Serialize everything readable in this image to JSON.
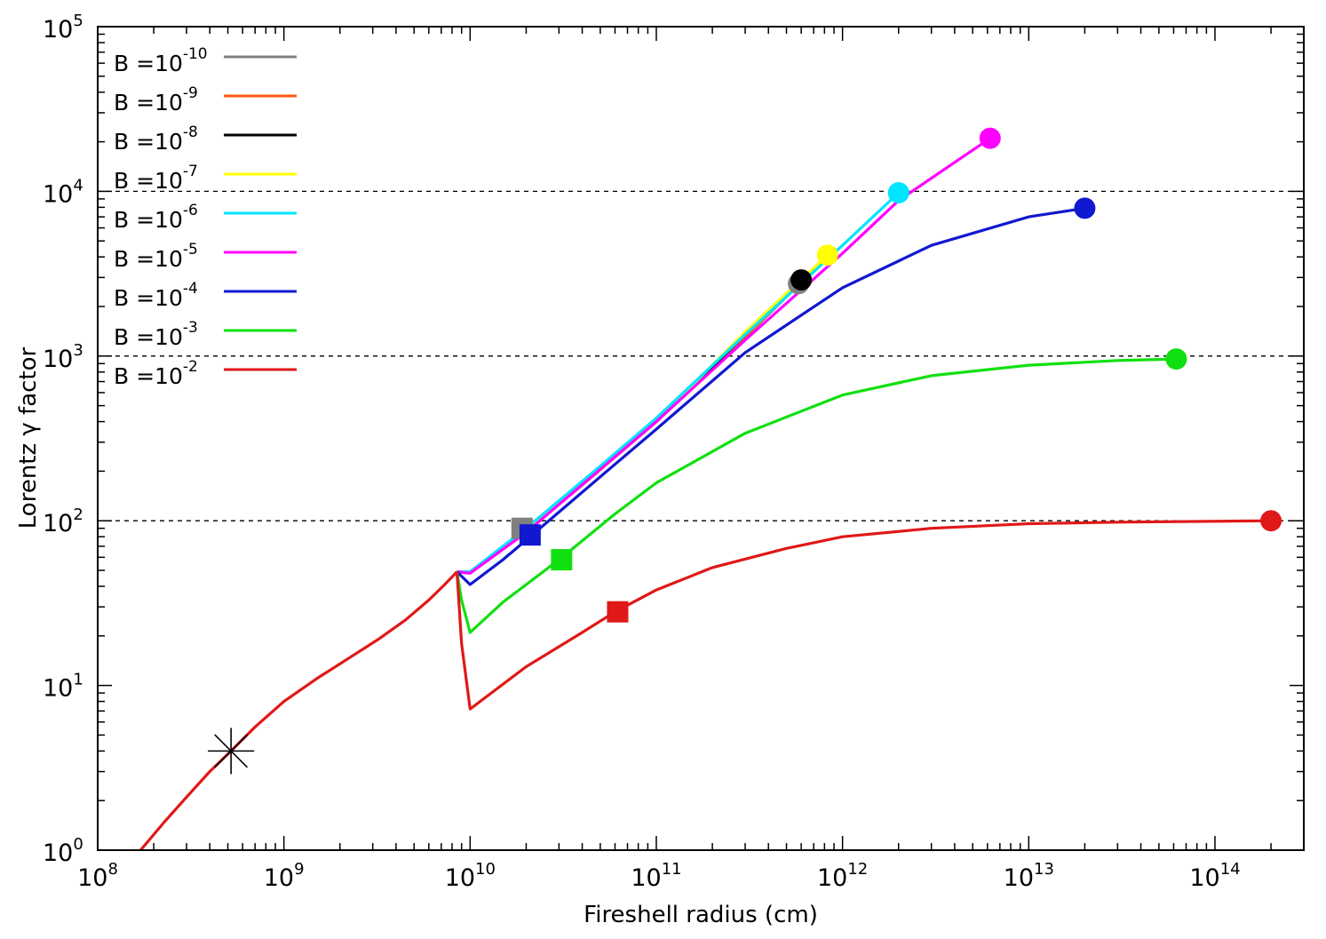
{
  "chart_data": {
    "type": "line",
    "xlabel": "Fireshell radius (cm)",
    "ylabel": "Lorentz γ factor",
    "x_scale": "log",
    "y_scale": "log",
    "xlim": [
      100000000.0,
      300000000000000.0
    ],
    "ylim": [
      1,
      100000.0
    ],
    "x_ticks": [
      {
        "base": "10",
        "exp": "8",
        "value": 100000000.0
      },
      {
        "base": "10",
        "exp": "9",
        "value": 1000000000.0
      },
      {
        "base": "10",
        "exp": "10",
        "value": 10000000000.0
      },
      {
        "base": "10",
        "exp": "11",
        "value": 100000000000.0
      },
      {
        "base": "10",
        "exp": "12",
        "value": 1000000000000.0
      },
      {
        "base": "10",
        "exp": "13",
        "value": 10000000000000.0
      },
      {
        "base": "10",
        "exp": "14",
        "value": 100000000000000.0
      }
    ],
    "y_ticks": [
      {
        "base": "10",
        "exp": "0",
        "value": 1
      },
      {
        "base": "10",
        "exp": "1",
        "value": 10
      },
      {
        "base": "10",
        "exp": "2",
        "value": 100
      },
      {
        "base": "10",
        "exp": "3",
        "value": 1000
      },
      {
        "base": "10",
        "exp": "4",
        "value": 10000
      },
      {
        "base": "10",
        "exp": "5",
        "value": 100000
      }
    ],
    "dashed_gridlines_y": [
      100,
      1000,
      10000
    ],
    "legend_position": "top-left",
    "common_curve": {
      "color": "#e01818",
      "points": [
        [
          170000000.0,
          1
        ],
        [
          230000000.0,
          1.5
        ],
        [
          300000000.0,
          2.1
        ],
        [
          400000000.0,
          3.0
        ],
        [
          520000000.0,
          4.0
        ],
        [
          700000000.0,
          5.6
        ],
        [
          1000000000.0,
          8.0
        ],
        [
          1500000000.0,
          11
        ],
        [
          2200000000.0,
          14.5
        ],
        [
          3200000000.0,
          19
        ],
        [
          4500000000.0,
          25
        ],
        [
          6000000000.0,
          33
        ],
        [
          7300000000.0,
          41
        ],
        [
          8500000000.0,
          49
        ]
      ]
    },
    "series": [
      {
        "name_base": "B =10",
        "name_exp": "-10",
        "color": "#808080",
        "points": [
          [
            8500000000.0,
            49
          ],
          [
            10000000000.0,
            49
          ],
          [
            20000000000.0,
            88
          ],
          [
            40000000000.0,
            165
          ],
          [
            100000000000.0,
            400
          ],
          [
            300000000000.0,
            1300
          ],
          [
            580000000000.0,
            2700
          ]
        ],
        "square": [
          19000000000.0,
          90
        ],
        "circle": [
          580000000000.0,
          2750
        ]
      },
      {
        "name_base": "B =10",
        "name_exp": "-9",
        "color": "#ff5a10",
        "points": [
          [
            8500000000.0,
            49
          ],
          [
            10000000000.0,
            49
          ],
          [
            20000000000.0,
            88
          ],
          [
            40000000000.0,
            165
          ],
          [
            100000000000.0,
            400
          ],
          [
            300000000000.0,
            1300
          ],
          [
            580000000000.0,
            2750
          ]
        ],
        "square": null,
        "circle": null
      },
      {
        "name_base": "B =10",
        "name_exp": "-8",
        "color": "#000000",
        "points": [
          [
            8500000000.0,
            49
          ],
          [
            10000000000.0,
            49
          ],
          [
            20000000000.0,
            88
          ],
          [
            40000000000.0,
            165
          ],
          [
            100000000000.0,
            400
          ],
          [
            300000000000.0,
            1350
          ],
          [
            600000000000.0,
            2850
          ]
        ],
        "square": null,
        "circle": [
          600000000000.0,
          2900
        ]
      },
      {
        "name_base": "B =10",
        "name_exp": "-7",
        "color": "#ffff00",
        "points": [
          [
            8500000000.0,
            49
          ],
          [
            10000000000.0,
            49
          ],
          [
            20000000000.0,
            88
          ],
          [
            40000000000.0,
            165
          ],
          [
            100000000000.0,
            400
          ],
          [
            300000000000.0,
            1400
          ],
          [
            830000000000.0,
            4100
          ]
        ],
        "square": null,
        "circle": [
          830000000000.0,
          4100
        ]
      },
      {
        "name_base": "B =10",
        "name_exp": "-6",
        "color": "#00e5ff",
        "points": [
          [
            8500000000.0,
            49
          ],
          [
            10000000000.0,
            49
          ],
          [
            20000000000.0,
            90
          ],
          [
            50000000000.0,
            215
          ],
          [
            100000000000.0,
            420
          ],
          [
            300000000000.0,
            1350
          ],
          [
            1000000000000.0,
            4700
          ],
          [
            2000000000000.0,
            9800
          ]
        ],
        "square": null,
        "circle": [
          2000000000000.0,
          9800
        ]
      },
      {
        "name_base": "B =10",
        "name_exp": "-5",
        "color": "#ff00ff",
        "points": [
          [
            8500000000.0,
            49
          ],
          [
            10000000000.0,
            48
          ],
          [
            20000000000.0,
            85
          ],
          [
            50000000000.0,
            205
          ],
          [
            100000000000.0,
            400
          ],
          [
            300000000000.0,
            1250
          ],
          [
            1000000000000.0,
            4200
          ],
          [
            2000000000000.0,
            8800
          ],
          [
            6200000000000.0,
            21000
          ]
        ],
        "square": null,
        "circle": [
          6200000000000.0,
          21000
        ]
      },
      {
        "name_base": "B =10",
        "name_exp": "-4",
        "color": "#1018d0",
        "points": [
          [
            8500000000.0,
            49
          ],
          [
            10000000000.0,
            41
          ],
          [
            15000000000.0,
            58
          ],
          [
            21000000000.0,
            80
          ],
          [
            50000000000.0,
            185
          ],
          [
            100000000000.0,
            360
          ],
          [
            300000000000.0,
            1050
          ],
          [
            1000000000000.0,
            2600
          ],
          [
            3000000000000.0,
            4700
          ],
          [
            10000000000000.0,
            7000
          ],
          [
            20000000000000.0,
            7900
          ]
        ],
        "square": [
          21000000000.0,
          82
        ],
        "circle": [
          20000000000000.0,
          7900
        ]
      },
      {
        "name_base": "B =10",
        "name_exp": "-3",
        "color": "#10e010",
        "points": [
          [
            8500000000.0,
            49
          ],
          [
            9000000000.0,
            33
          ],
          [
            10000000000.0,
            21
          ],
          [
            15000000000.0,
            32
          ],
          [
            30000000000.0,
            58
          ],
          [
            60000000000.0,
            110
          ],
          [
            100000000000.0,
            170
          ],
          [
            300000000000.0,
            340
          ],
          [
            1000000000000.0,
            580
          ],
          [
            3000000000000.0,
            760
          ],
          [
            10000000000000.0,
            880
          ],
          [
            30000000000000.0,
            940
          ],
          [
            62000000000000.0,
            960
          ]
        ],
        "square": [
          31000000000.0,
          58
        ],
        "circle": [
          62000000000000.0,
          960
        ]
      },
      {
        "name_base": "B =10",
        "name_exp": "-2",
        "color": "#e01818",
        "points": [
          [
            8500000000.0,
            49
          ],
          [
            9000000000.0,
            18
          ],
          [
            10000000000.0,
            7.2
          ],
          [
            20000000000.0,
            13
          ],
          [
            40000000000.0,
            21
          ],
          [
            60000000000.0,
            28
          ],
          [
            100000000000.0,
            38
          ],
          [
            200000000000.0,
            52
          ],
          [
            500000000000.0,
            68
          ],
          [
            1000000000000.0,
            80
          ],
          [
            3000000000000.0,
            90
          ],
          [
            10000000000000.0,
            96
          ],
          [
            30000000000000.0,
            98
          ],
          [
            200000000000000.0,
            100
          ]
        ],
        "square": [
          62000000000.0,
          28
        ],
        "circle": [
          200000000000000.0,
          100
        ]
      }
    ],
    "star_marker": {
      "x": 520000000.0,
      "y": 4.0,
      "color": "#000000"
    }
  }
}
